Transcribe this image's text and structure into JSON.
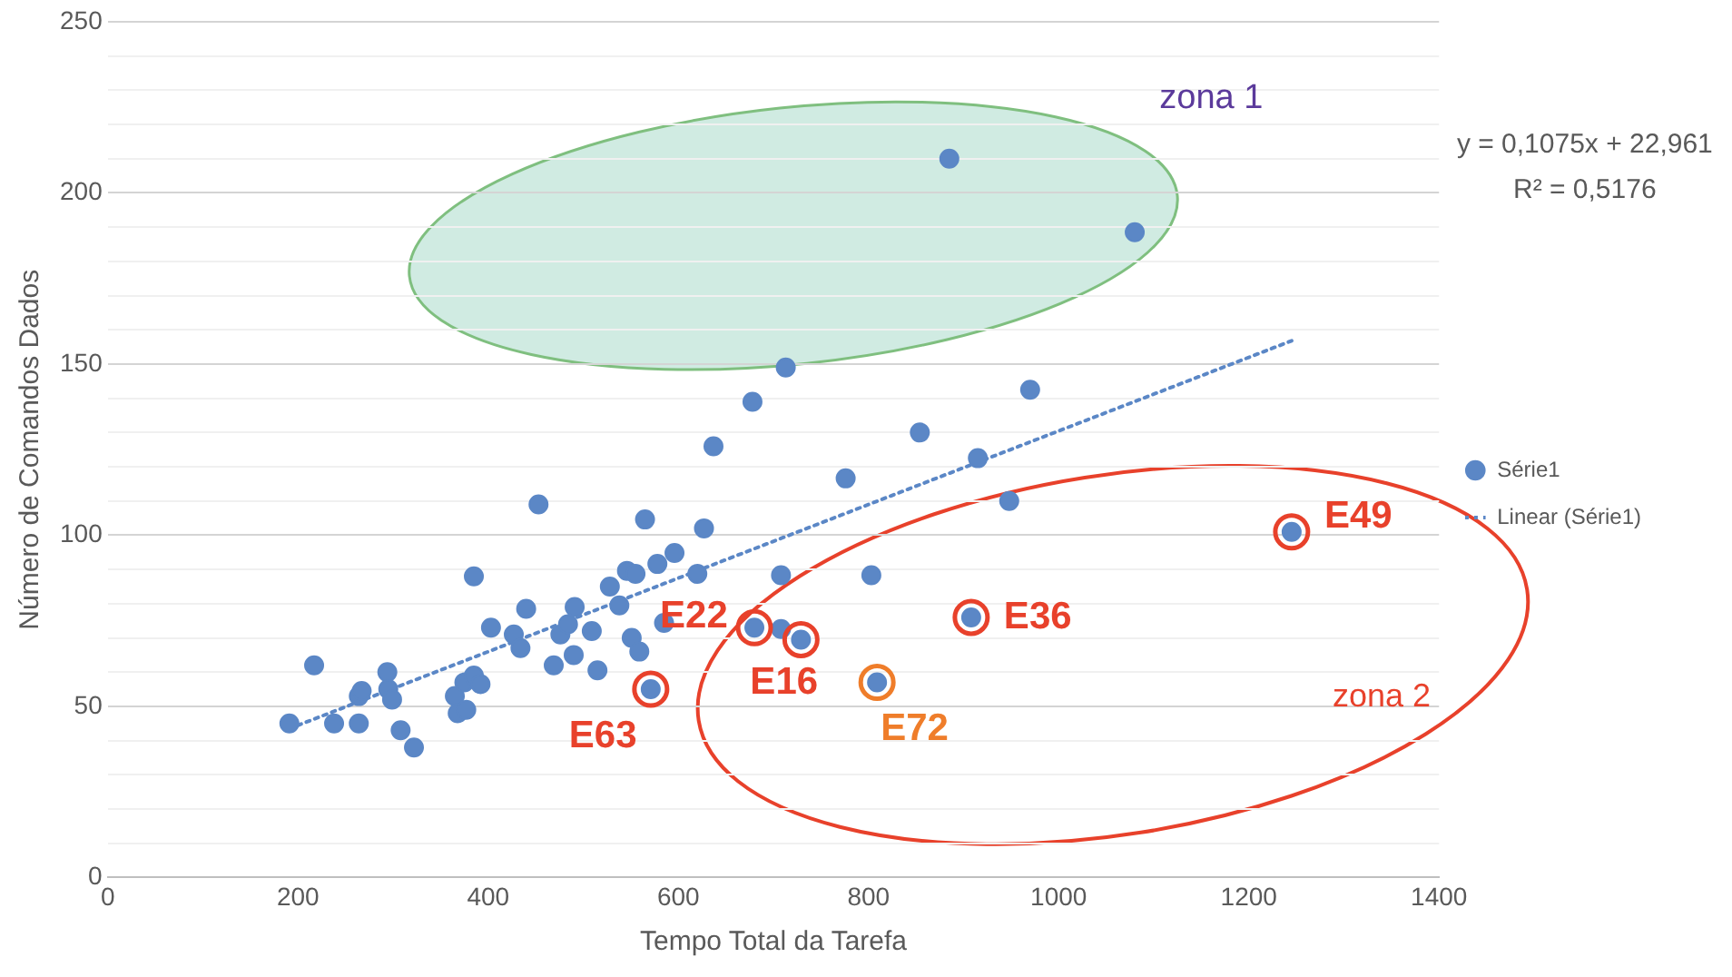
{
  "chart_data": {
    "type": "scatter",
    "xlabel": "Tempo Total da Tarefa",
    "ylabel": "Número de Comandos Dados",
    "xlim": [
      0,
      1400
    ],
    "xticks": [
      0,
      200,
      400,
      600,
      800,
      1000,
      1200,
      1400
    ],
    "ylim": [
      0,
      250
    ],
    "yticks": [
      0,
      {
        "value": 10,
        "label": null
      },
      {
        "value": 20,
        "label": null
      },
      {
        "value": 30,
        "label": null
      },
      {
        "value": 40,
        "label": null
      },
      50,
      {
        "value": 60,
        "label": null
      },
      {
        "value": 70,
        "label": null
      },
      {
        "value": 80,
        "label": null
      },
      {
        "value": 90,
        "label": null
      },
      100,
      {
        "value": 110,
        "label": null
      },
      {
        "value": 120,
        "label": null
      },
      {
        "value": 130,
        "label": null
      },
      {
        "value": 140,
        "label": null
      },
      150,
      {
        "value": 160,
        "label": null
      },
      {
        "value": 170,
        "label": null
      },
      {
        "value": 180,
        "label": null
      },
      {
        "value": 190,
        "label": null
      },
      200,
      {
        "value": 210,
        "label": null
      },
      {
        "value": 220,
        "label": null
      },
      {
        "value": 230,
        "label": null
      },
      {
        "value": 240,
        "label": null
      },
      250
    ],
    "grid": "y",
    "legend": "right",
    "marker": "circle",
    "series": [
      {
        "name": "Série1",
        "type": "scatter",
        "color": "#5b87c6",
        "x": [
          191,
          217,
          238,
          264,
          264,
          267,
          294,
          295,
          299,
          308,
          322,
          365,
          368,
          377,
          375,
          385,
          392,
          385,
          403,
          427,
          434,
          440,
          453,
          469,
          476,
          484,
          491,
          490,
          509,
          515,
          528,
          538,
          546,
          555,
          551,
          559,
          565,
          578,
          596,
          585,
          620,
          627,
          637,
          678,
          713,
          776,
          708,
          680,
          708,
          729,
          571,
          970,
          854,
          915,
          948,
          1245,
          803,
          908,
          809,
          885,
          1080
        ],
        "values": [
          45,
          62,
          45,
          45,
          53,
          54.5,
          60,
          55,
          52,
          43,
          38,
          53,
          48,
          49,
          57,
          59,
          56.5,
          88,
          73,
          71,
          67,
          78.5,
          109,
          62,
          71,
          74,
          79,
          65,
          72,
          60.5,
          85,
          79.5,
          89.6,
          88.7,
          70,
          66,
          104.6,
          91.6,
          94.8,
          74.4,
          88.7,
          102,
          126,
          139,
          149,
          116.6,
          88.3,
          73,
          72.6,
          69.5,
          55,
          142.5,
          130,
          122.5,
          110,
          101,
          88.3,
          76,
          57,
          210,
          188.5
        ]
      },
      {
        "name": "Linear (Série1)",
        "type": "line",
        "color": "#5b87c6",
        "line_style": "dotted",
        "marker": "none",
        "x": [
          191,
          1245
        ],
        "values": [
          43.5,
          156.8
        ]
      }
    ],
    "annotations": [
      "y = 0,1075x + 22,961",
      "R² = 0,5176",
      "zona 1",
      "zona 2",
      {
        "text": "E22",
        "x": 680,
        "y": 73
      },
      {
        "text": "E16",
        "x": 729,
        "y": 69.5
      },
      {
        "text": "E63",
        "x": 571,
        "y": 55
      },
      {
        "text": "E36",
        "x": 908,
        "y": 76
      },
      {
        "text": "E72",
        "x": 809,
        "y": 57
      },
      {
        "text": "E49",
        "x": 1245,
        "y": 101
      }
    ]
  }
}
